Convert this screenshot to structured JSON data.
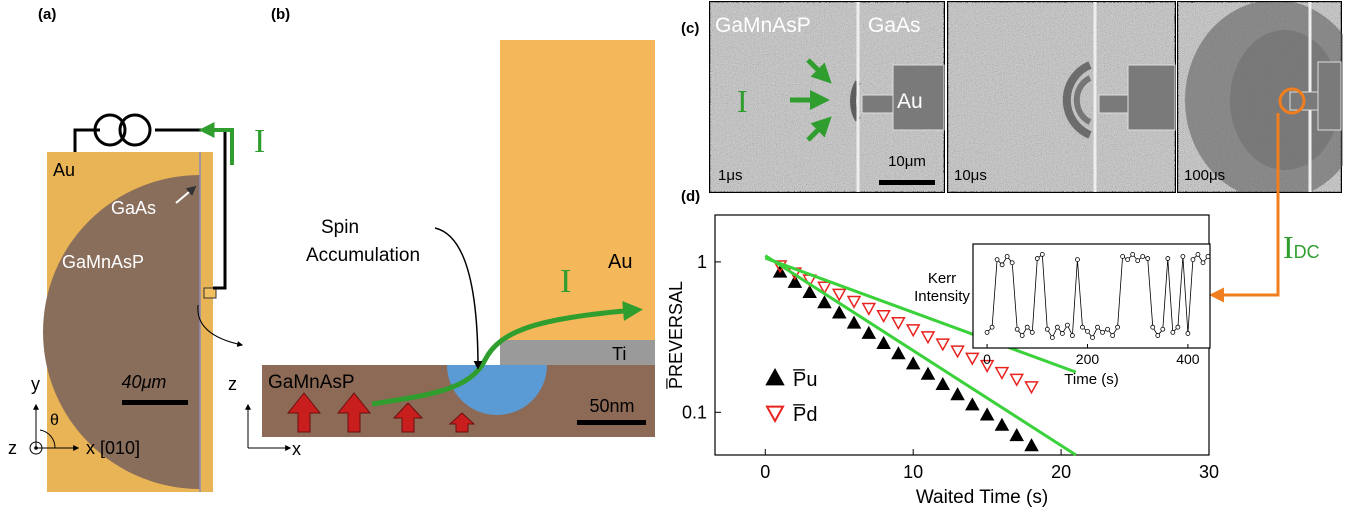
{
  "panel_a": {
    "label": "(a)",
    "au": "Au",
    "gaas": "GaAs",
    "gamnasp": "GaMnAsP",
    "scale": "40μm",
    "current": "I",
    "axis_y": "y",
    "axis_theta": "θ",
    "axis_z": "z",
    "axis_x": "x [010]"
  },
  "panel_b": {
    "label": "(b)",
    "spin": [
      "Spin",
      "Accumulation"
    ],
    "au": "Au",
    "current": "I",
    "ti": "Ti",
    "gamnasp": "GaMnAsP",
    "scale": "50nm",
    "axis_z": "z",
    "axis_x": "x"
  },
  "panel_c": {
    "label": "(c)",
    "gamnasp": "GaMnAsP",
    "gaas": "GaAs",
    "current": "I",
    "au": "Au",
    "scale": "10μm",
    "times": [
      "1μs",
      "10μs",
      "100μs"
    ],
    "dc_current": "I",
    "dc_subscript": "DC"
  },
  "panel_d": {
    "label": "(d)"
  },
  "chart_data": [
    {
      "type": "scatter",
      "xlabel": "Waited Time (s)",
      "ylabel": "P̅REVERSAL",
      "x": [
        1,
        2,
        3,
        4,
        5,
        6,
        7,
        8,
        9,
        10,
        11,
        12,
        13,
        14,
        15,
        16,
        17,
        18
      ],
      "series": [
        {
          "name": "P̅u",
          "color": "#000000",
          "marker": "triangle-up",
          "filled": true,
          "values": [
            0.855,
            0.732,
            0.626,
            0.535,
            0.458,
            0.392,
            0.335,
            0.287,
            0.245,
            0.21,
            0.179,
            0.153,
            0.131,
            0.112,
            0.096,
            0.082,
            0.07,
            0.06
          ]
        },
        {
          "name": "P̅d",
          "color": "#e8231e",
          "marker": "triangle-down",
          "filled": false,
          "values": [
            0.942,
            0.845,
            0.758,
            0.68,
            0.61,
            0.547,
            0.491,
            0.44,
            0.395,
            0.354,
            0.318,
            0.285,
            0.256,
            0.229,
            0.205,
            0.184,
            0.166,
            0.148
          ]
        }
      ],
      "fits": [
        {
          "color": "#3ad13a",
          "x": [
            0,
            21
          ],
          "values": [
            1.1,
            0.052
          ]
        },
        {
          "color": "#3ad13a",
          "x": [
            0,
            21
          ],
          "values": [
            1.06,
            0.185
          ]
        }
      ],
      "xlim": [
        -3.4,
        30
      ],
      "ylim": [
        0.052,
        2.05
      ],
      "xticks": [
        0,
        10,
        20,
        30
      ],
      "yticks": [
        0.1,
        1
      ],
      "log_y": true,
      "legend": "lower left"
    },
    {
      "type": "line",
      "xlabel": "Time (s)",
      "ylabel": [
        "Kerr",
        "Intensity"
      ],
      "color": "#000000",
      "x": [
        0,
        10,
        20,
        30,
        40,
        50,
        60,
        70,
        80,
        90,
        100,
        110,
        120,
        130,
        140,
        150,
        160,
        170,
        180,
        190,
        200,
        210,
        220,
        230,
        240,
        250,
        260,
        270,
        280,
        290,
        300,
        310,
        320,
        330,
        340,
        350,
        360,
        370,
        380,
        390,
        400,
        410,
        420,
        430,
        440
      ],
      "values": [
        0.15,
        0.2,
        0.85,
        0.8,
        0.88,
        0.82,
        0.18,
        0.12,
        0.2,
        0.15,
        0.86,
        0.9,
        0.18,
        0.1,
        0.2,
        0.14,
        0.22,
        0.12,
        0.85,
        0.2,
        0.16,
        0.1,
        0.2,
        0.15,
        0.18,
        0.12,
        0.2,
        0.88,
        0.85,
        0.9,
        0.84,
        0.88,
        0.86,
        0.2,
        0.12,
        0.18,
        0.86,
        0.15,
        0.2,
        0.88,
        0.14,
        0.85,
        0.9,
        0.82,
        0.88
      ],
      "xlim": [
        -28,
        444
      ],
      "ylim": [
        0,
        1
      ],
      "xticks": [
        0,
        200,
        400
      ]
    }
  ]
}
